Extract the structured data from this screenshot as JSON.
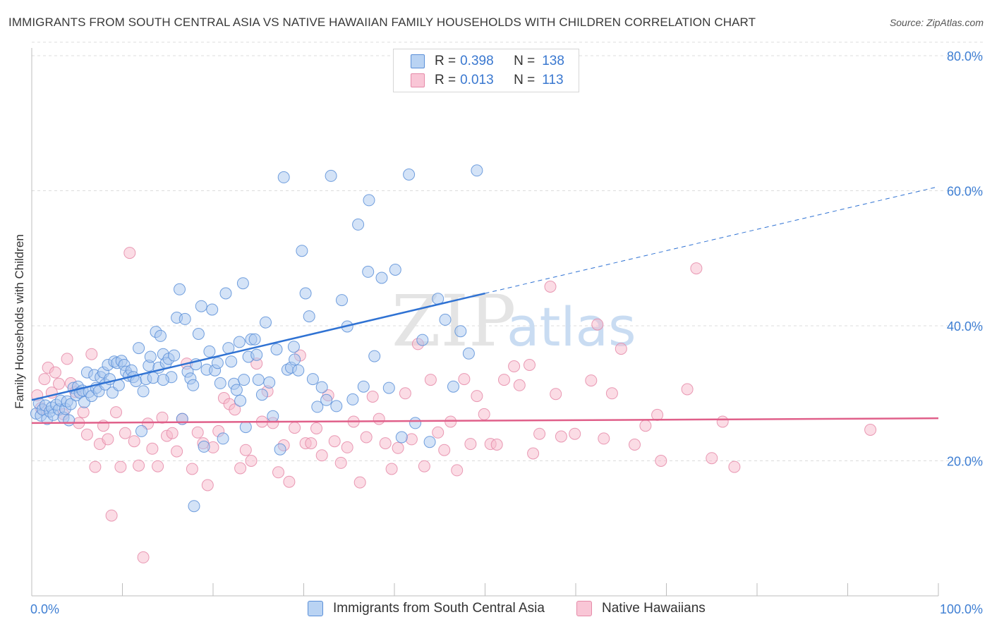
{
  "title": "IMMIGRANTS FROM SOUTH CENTRAL ASIA VS NATIVE HAWAIIAN FAMILY HOUSEHOLDS WITH CHILDREN CORRELATION CHART",
  "source": "Source: ZipAtlas.com",
  "watermark": {
    "zip": "ZIP",
    "atlas": "atlas"
  },
  "legend": {
    "rows": [
      {
        "r_label": "R =",
        "r_value": "0.398",
        "n_label": "N =",
        "n_value": "138"
      },
      {
        "r_label": "R =",
        "r_value": "0.013",
        "n_label": "N =",
        "n_value": "113"
      }
    ]
  },
  "bottom_legend": [
    "Immigrants from South Central Asia",
    "Native Hawaiians"
  ],
  "colors": {
    "blue_fill": "#a9c8ef",
    "blue_stroke": "#5a8fd8",
    "blue_line": "#2f72d3",
    "pink_fill": "#f7b9cc",
    "pink_stroke": "#e58aa8",
    "pink_line": "#e0608a",
    "tick_text": "#3f7fd3",
    "grid": "#dcdcdc"
  },
  "chart_data": {
    "type": "scatter",
    "title": "IMMIGRANTS FROM SOUTH CENTRAL ASIA VS NATIVE HAWAIIAN FAMILY HOUSEHOLDS WITH CHILDREN CORRELATION CHART",
    "xlabel": "",
    "ylabel": "Family Households with Children",
    "xlim": [
      0,
      100
    ],
    "ylim": [
      0,
      82
    ],
    "x_ticks": [
      0,
      10,
      20,
      30,
      40,
      50,
      60,
      70,
      80,
      90,
      100
    ],
    "x_tick_labels": [
      "0.0%",
      "100.0%"
    ],
    "y_ticks": [
      20,
      40,
      60,
      80
    ],
    "y_tick_labels": [
      "20.0%",
      "40.0%",
      "60.0%",
      "80.0%"
    ],
    "grid": true,
    "legend_position": "top-center",
    "series": [
      {
        "name": "Immigrants from South Central Asia",
        "R": 0.398,
        "N": 138,
        "trend": {
          "x_start": 0,
          "y_start": 29.0,
          "x_solid_end": 50,
          "y_solid_end": 44.8,
          "x_end": 100,
          "y_end": 60.6
        },
        "points": [
          [
            0.5,
            27.0
          ],
          [
            0.8,
            28.5
          ],
          [
            1.0,
            26.7
          ],
          [
            1.2,
            27.6
          ],
          [
            1.5,
            28.2
          ],
          [
            1.7,
            26.2
          ],
          [
            2.0,
            27.3
          ],
          [
            2.2,
            27.9
          ],
          [
            2.4,
            26.8
          ],
          [
            2.7,
            28.3
          ],
          [
            3.0,
            27.6
          ],
          [
            3.2,
            28.9
          ],
          [
            3.5,
            26.4
          ],
          [
            3.7,
            27.7
          ],
          [
            3.9,
            28.8
          ],
          [
            4.1,
            26.0
          ],
          [
            4.3,
            28.4
          ],
          [
            4.6,
            30.8
          ],
          [
            4.9,
            29.7
          ],
          [
            5.1,
            31.0
          ],
          [
            5.3,
            30.1
          ],
          [
            5.6,
            30.4
          ],
          [
            5.8,
            28.7
          ],
          [
            6.1,
            33.1
          ],
          [
            6.3,
            30.2
          ],
          [
            6.6,
            29.6
          ],
          [
            6.9,
            32.7
          ],
          [
            7.1,
            30.8
          ],
          [
            7.4,
            30.3
          ],
          [
            7.6,
            32.4
          ],
          [
            7.9,
            33.1
          ],
          [
            8.1,
            31.3
          ],
          [
            8.4,
            34.2
          ],
          [
            8.6,
            32.1
          ],
          [
            8.9,
            30.1
          ],
          [
            9.1,
            34.7
          ],
          [
            9.4,
            34.5
          ],
          [
            9.6,
            31.2
          ],
          [
            9.9,
            34.8
          ],
          [
            10.2,
            34.2
          ],
          [
            10.4,
            33.2
          ],
          [
            10.7,
            32.6
          ],
          [
            11.0,
            33.4
          ],
          [
            11.2,
            32.4
          ],
          [
            11.5,
            31.8
          ],
          [
            11.8,
            36.7
          ],
          [
            12.1,
            24.4
          ],
          [
            12.3,
            30.3
          ],
          [
            12.6,
            32.1
          ],
          [
            12.9,
            34.1
          ],
          [
            13.1,
            35.4
          ],
          [
            13.4,
            32.3
          ],
          [
            13.7,
            39.1
          ],
          [
            14.0,
            33.8
          ],
          [
            14.2,
            38.5
          ],
          [
            14.5,
            35.8
          ],
          [
            14.8,
            34.5
          ],
          [
            15.1,
            35.1
          ],
          [
            15.4,
            32.4
          ],
          [
            15.7,
            35.6
          ],
          [
            16.0,
            41.2
          ],
          [
            16.3,
            45.4
          ],
          [
            16.6,
            26.2
          ],
          [
            16.9,
            41.0
          ],
          [
            17.2,
            33.2
          ],
          [
            17.5,
            32.2
          ],
          [
            17.8,
            31.2
          ],
          [
            18.1,
            34.3
          ],
          [
            18.4,
            38.8
          ],
          [
            18.7,
            42.9
          ],
          [
            19.0,
            22.1
          ],
          [
            19.3,
            33.5
          ],
          [
            19.6,
            36.2
          ],
          [
            19.9,
            42.4
          ],
          [
            20.2,
            33.4
          ],
          [
            20.5,
            34.5
          ],
          [
            20.8,
            31.5
          ],
          [
            21.1,
            23.3
          ],
          [
            21.4,
            44.8
          ],
          [
            21.7,
            36.7
          ],
          [
            22.0,
            34.7
          ],
          [
            22.3,
            31.4
          ],
          [
            22.6,
            30.5
          ],
          [
            23.0,
            28.9
          ],
          [
            23.3,
            46.3
          ],
          [
            23.6,
            25.0
          ],
          [
            23.9,
            35.4
          ],
          [
            24.2,
            38.0
          ],
          [
            24.6,
            38.0
          ],
          [
            25.0,
            32.0
          ],
          [
            25.4,
            29.8
          ],
          [
            25.8,
            40.5
          ],
          [
            26.2,
            31.6
          ],
          [
            26.6,
            26.6
          ],
          [
            27.0,
            36.5
          ],
          [
            27.4,
            21.7
          ],
          [
            27.8,
            62.0
          ],
          [
            28.2,
            33.5
          ],
          [
            28.6,
            33.8
          ],
          [
            29.0,
            35.0
          ],
          [
            29.4,
            33.4
          ],
          [
            29.8,
            51.1
          ],
          [
            30.2,
            44.8
          ],
          [
            30.6,
            41.4
          ],
          [
            31.0,
            32.1
          ],
          [
            31.5,
            28.0
          ],
          [
            32.0,
            30.9
          ],
          [
            32.5,
            29.0
          ],
          [
            33.0,
            62.2
          ],
          [
            33.6,
            28.1
          ],
          [
            34.2,
            43.8
          ],
          [
            34.8,
            39.9
          ],
          [
            35.4,
            29.1
          ],
          [
            36.0,
            55.0
          ],
          [
            36.6,
            31.0
          ],
          [
            37.2,
            58.6
          ],
          [
            37.8,
            35.5
          ],
          [
            38.6,
            47.1
          ],
          [
            39.4,
            30.8
          ],
          [
            40.1,
            48.3
          ],
          [
            40.8,
            23.5
          ],
          [
            41.6,
            62.4
          ],
          [
            42.3,
            25.6
          ],
          [
            43.1,
            37.9
          ],
          [
            43.9,
            22.8
          ],
          [
            44.8,
            44.0
          ],
          [
            45.6,
            40.9
          ],
          [
            46.5,
            31.0
          ],
          [
            47.3,
            39.2
          ],
          [
            48.2,
            35.9
          ],
          [
            49.1,
            63.0
          ],
          [
            23.4,
            32.0
          ],
          [
            24.8,
            35.7
          ],
          [
            28.9,
            36.9
          ],
          [
            37.1,
            48.0
          ],
          [
            17.9,
            13.3
          ],
          [
            22.9,
            37.6
          ],
          [
            14.5,
            32.0
          ]
        ]
      },
      {
        "name": "Native Hawaiians",
        "R": 0.013,
        "N": 113,
        "trend": {
          "x_start": 0,
          "y_start": 25.6,
          "x_end": 100,
          "y_end": 26.3
        },
        "points": [
          [
            0.6,
            29.7
          ],
          [
            1.0,
            27.8
          ],
          [
            1.4,
            32.1
          ],
          [
            1.8,
            33.8
          ],
          [
            2.2,
            30.1
          ],
          [
            2.6,
            33.1
          ],
          [
            3.0,
            31.4
          ],
          [
            3.5,
            26.9
          ],
          [
            3.9,
            35.1
          ],
          [
            4.3,
            31.5
          ],
          [
            4.8,
            30.2
          ],
          [
            5.2,
            25.6
          ],
          [
            5.7,
            27.2
          ],
          [
            6.1,
            23.9
          ],
          [
            6.6,
            35.8
          ],
          [
            7.0,
            19.1
          ],
          [
            7.5,
            22.5
          ],
          [
            7.9,
            25.2
          ],
          [
            8.4,
            23.2
          ],
          [
            8.8,
            11.9
          ],
          [
            9.3,
            27.2
          ],
          [
            9.8,
            19.1
          ],
          [
            10.3,
            24.1
          ],
          [
            10.8,
            50.8
          ],
          [
            11.3,
            22.9
          ],
          [
            11.8,
            19.3
          ],
          [
            12.3,
            5.7
          ],
          [
            12.8,
            25.5
          ],
          [
            13.3,
            21.8
          ],
          [
            13.9,
            19.2
          ],
          [
            14.4,
            26.4
          ],
          [
            14.9,
            23.7
          ],
          [
            15.5,
            24.1
          ],
          [
            16.0,
            21.4
          ],
          [
            16.6,
            26.2
          ],
          [
            17.1,
            34.4
          ],
          [
            17.7,
            18.8
          ],
          [
            18.3,
            24.2
          ],
          [
            18.9,
            22.6
          ],
          [
            19.4,
            16.4
          ],
          [
            20.0,
            22.0
          ],
          [
            20.6,
            24.4
          ],
          [
            21.2,
            29.3
          ],
          [
            21.8,
            28.4
          ],
          [
            22.4,
            27.6
          ],
          [
            23.0,
            18.9
          ],
          [
            23.6,
            21.6
          ],
          [
            24.2,
            20.0
          ],
          [
            24.8,
            34.4
          ],
          [
            25.4,
            25.8
          ],
          [
            26.0,
            30.3
          ],
          [
            26.6,
            25.6
          ],
          [
            27.2,
            18.3
          ],
          [
            27.8,
            22.3
          ],
          [
            28.4,
            16.9
          ],
          [
            29.0,
            24.9
          ],
          [
            29.6,
            35.6
          ],
          [
            30.2,
            22.6
          ],
          [
            30.8,
            22.6
          ],
          [
            31.4,
            24.8
          ],
          [
            32.0,
            20.8
          ],
          [
            32.7,
            29.7
          ],
          [
            33.4,
            22.9
          ],
          [
            34.1,
            19.7
          ],
          [
            34.8,
            22.0
          ],
          [
            35.5,
            25.8
          ],
          [
            36.2,
            16.8
          ],
          [
            36.9,
            23.5
          ],
          [
            37.6,
            29.5
          ],
          [
            38.3,
            26.2
          ],
          [
            39.0,
            22.6
          ],
          [
            39.7,
            18.8
          ],
          [
            40.4,
            21.9
          ],
          [
            41.2,
            30.0
          ],
          [
            41.9,
            23.2
          ],
          [
            42.6,
            37.3
          ],
          [
            43.3,
            19.2
          ],
          [
            44.0,
            32.0
          ],
          [
            44.8,
            24.2
          ],
          [
            45.5,
            21.6
          ],
          [
            46.2,
            25.8
          ],
          [
            46.9,
            18.6
          ],
          [
            47.7,
            32.1
          ],
          [
            48.4,
            22.5
          ],
          [
            49.1,
            29.6
          ],
          [
            49.9,
            26.9
          ],
          [
            50.6,
            22.5
          ],
          [
            51.3,
            22.4
          ],
          [
            52.1,
            32.0
          ],
          [
            53.2,
            34.0
          ],
          [
            53.8,
            31.2
          ],
          [
            54.9,
            34.2
          ],
          [
            55.3,
            21.1
          ],
          [
            56.0,
            24.0
          ],
          [
            57.2,
            45.8
          ],
          [
            57.8,
            29.9
          ],
          [
            58.4,
            23.6
          ],
          [
            59.9,
            24.0
          ],
          [
            61.7,
            31.9
          ],
          [
            62.4,
            40.2
          ],
          [
            63.1,
            23.3
          ],
          [
            64.0,
            30.0
          ],
          [
            65.0,
            36.6
          ],
          [
            66.5,
            22.4
          ],
          [
            67.7,
            25.2
          ],
          [
            69.0,
            26.8
          ],
          [
            69.4,
            20.0
          ],
          [
            72.3,
            30.6
          ],
          [
            73.3,
            48.5
          ],
          [
            75.0,
            20.4
          ],
          [
            76.2,
            25.8
          ],
          [
            77.5,
            19.1
          ],
          [
            92.5,
            24.6
          ]
        ]
      }
    ]
  }
}
